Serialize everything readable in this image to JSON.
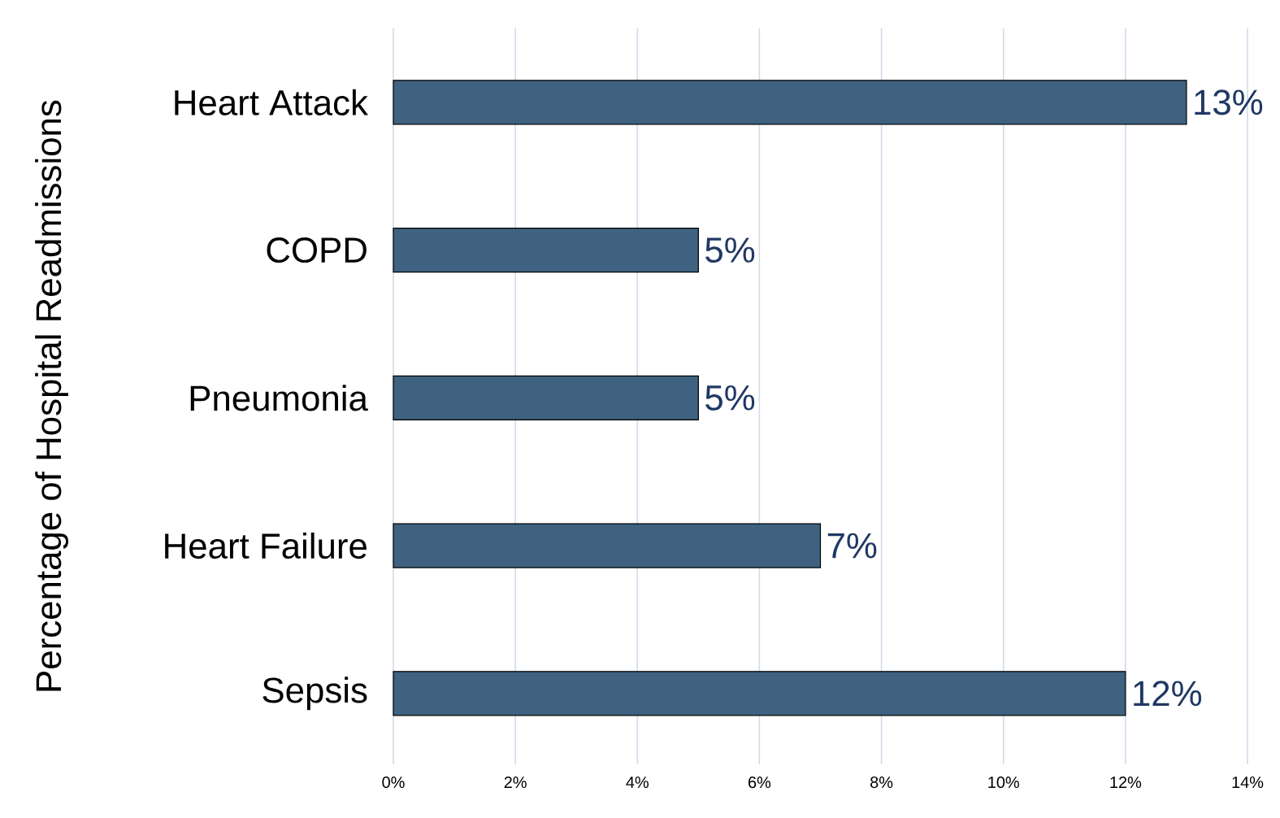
{
  "chart_data": {
    "type": "bar",
    "orientation": "horizontal",
    "ylabel": "Percentage of Hospital Readmissions",
    "categories": [
      "Heart Attack",
      "COPD",
      "Pneumonia",
      "Heart Failure",
      "Sepsis"
    ],
    "values": [
      13,
      5,
      5,
      7,
      12
    ],
    "value_labels": [
      "13%",
      "5%",
      "5%",
      "7%",
      "12%"
    ],
    "color": "#3e6280",
    "xlim": [
      0,
      14
    ],
    "xticks": [
      {
        "value": 0,
        "label": "0%"
      },
      {
        "value": 2,
        "label": "2%"
      },
      {
        "value": 4,
        "label": "4%"
      },
      {
        "value": 6,
        "label": "6%"
      },
      {
        "value": 8,
        "label": "8%"
      },
      {
        "value": 10,
        "label": "10%"
      },
      {
        "value": 12,
        "label": "12%"
      },
      {
        "value": 14,
        "label": "14%"
      }
    ],
    "grid": "x"
  }
}
